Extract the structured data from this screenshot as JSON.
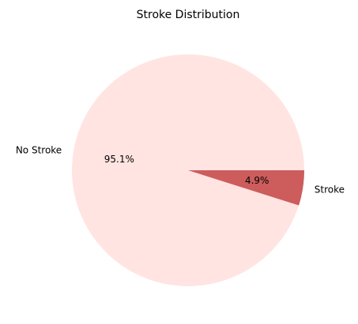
{
  "chart_data": {
    "type": "pie",
    "title": "Stroke Distribution",
    "slices": [
      {
        "label": "No Stroke",
        "pct_label": "95.1%",
        "value": 95.1,
        "color": "#ffe4e1"
      },
      {
        "label": "Stroke",
        "pct_label": "4.9%",
        "value": 4.9,
        "color": "#cd5c5c"
      }
    ],
    "start_angle_deg": 0,
    "direction": "counterclockwise"
  }
}
